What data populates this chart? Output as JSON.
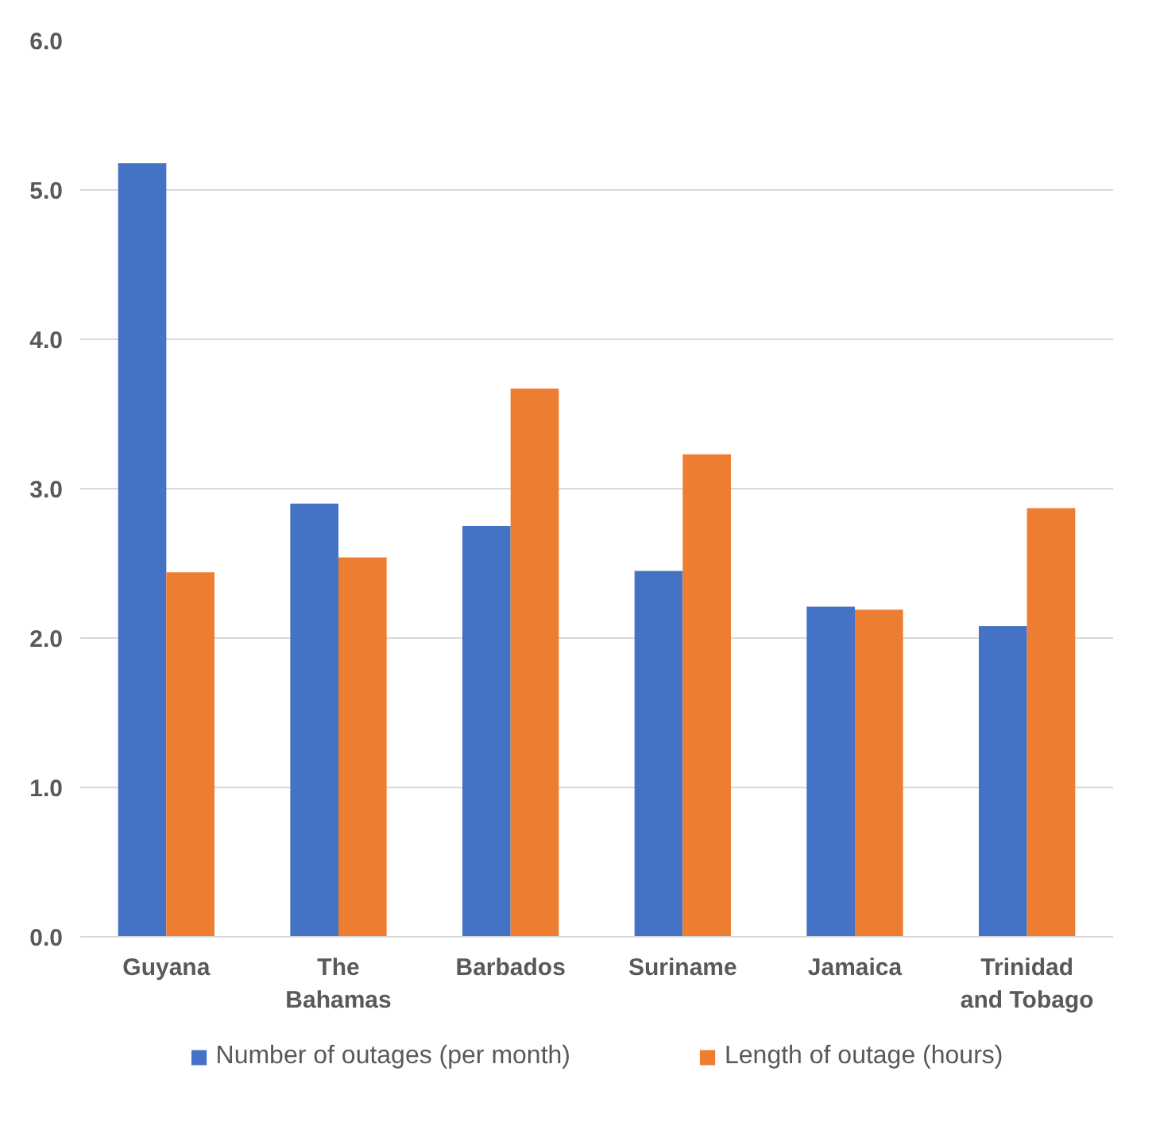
{
  "chart_data": {
    "type": "bar",
    "categories": [
      "Guyana",
      "The Bahamas",
      "Barbados",
      "Suriname",
      "Jamaica",
      "Trinidad and Tobago"
    ],
    "series": [
      {
        "name": "Number of outages (per month)",
        "color": "#4472c4",
        "values": [
          5.18,
          2.9,
          2.75,
          2.45,
          2.21,
          2.08
        ]
      },
      {
        "name": "Length of outage (hours)",
        "color": "#ed7d31",
        "values": [
          2.44,
          2.54,
          3.67,
          3.23,
          2.19,
          2.87
        ]
      }
    ],
    "ylim": [
      0,
      6
    ],
    "yticks": [
      {
        "value": 0,
        "label": "0.0"
      },
      {
        "value": 1,
        "label": "1.0"
      },
      {
        "value": 2,
        "label": "2.0"
      },
      {
        "value": 3,
        "label": "3.0"
      },
      {
        "value": 4,
        "label": "4.0"
      },
      {
        "value": 5,
        "label": "5.0"
      },
      {
        "value": 6,
        "label": "6.0"
      }
    ],
    "grid": "y",
    "legend": "bottom"
  }
}
